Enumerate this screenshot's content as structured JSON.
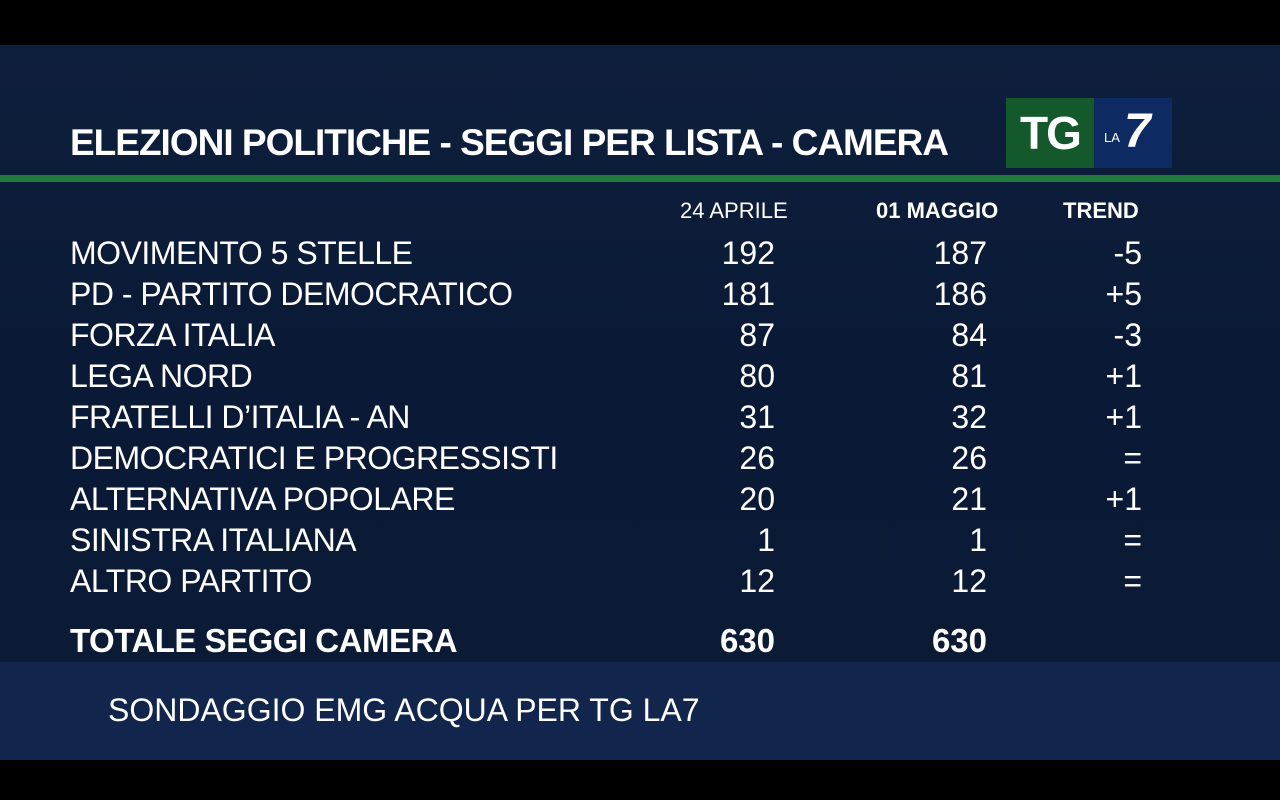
{
  "header": {
    "title": "ELEZIONI POLITICHE - SEGGI  PER  LISTA - CAMERA",
    "logo_tg": "TG",
    "logo_la": "LA",
    "logo_7": "7"
  },
  "columns": {
    "date1": "24 APRILE",
    "date2": "01 MAGGIO",
    "trend": "TREND"
  },
  "chart_data": {
    "type": "table",
    "title": "ELEZIONI POLITICHE - SEGGI  PER  LISTA - CAMERA",
    "columns": [
      "24 APRILE",
      "01 MAGGIO",
      "TREND"
    ],
    "rows": [
      {
        "party": "MOVIMENTO 5 STELLE",
        "apr": "192",
        "may": "187",
        "trend": "-5"
      },
      {
        "party": "PD - PARTITO DEMOCRATICO",
        "apr": "181",
        "may": "186",
        "trend": "+5"
      },
      {
        "party": "FORZA ITALIA",
        "apr": "87",
        "may": "84",
        "trend": "-3"
      },
      {
        "party": "LEGA NORD",
        "apr": "80",
        "may": "81",
        "trend": "+1"
      },
      {
        "party": "FRATELLI D’ITALIA - AN",
        "apr": "31",
        "may": "32",
        "trend": "+1"
      },
      {
        "party": "DEMOCRATICI E PROGRESSISTI",
        "apr": "26",
        "may": "26",
        "trend": "="
      },
      {
        "party": "ALTERNATIVA POPOLARE",
        "apr": "20",
        "may": "21",
        "trend": "+1"
      },
      {
        "party": "SINISTRA ITALIANA",
        "apr": "1",
        "may": "1",
        "trend": "="
      },
      {
        "party": "ALTRO PARTITO",
        "apr": "12",
        "may": "12",
        "trend": "="
      }
    ],
    "total": {
      "label": "TOTALE SEGGI CAMERA",
      "apr": "630",
      "may": "630"
    }
  },
  "footer": {
    "source": "SONDAGGIO EMG ACQUA PER TG LA7"
  },
  "colors": {
    "background": "#0b1a35",
    "accent_green": "#1f7a3c",
    "text": "#ffffff"
  }
}
